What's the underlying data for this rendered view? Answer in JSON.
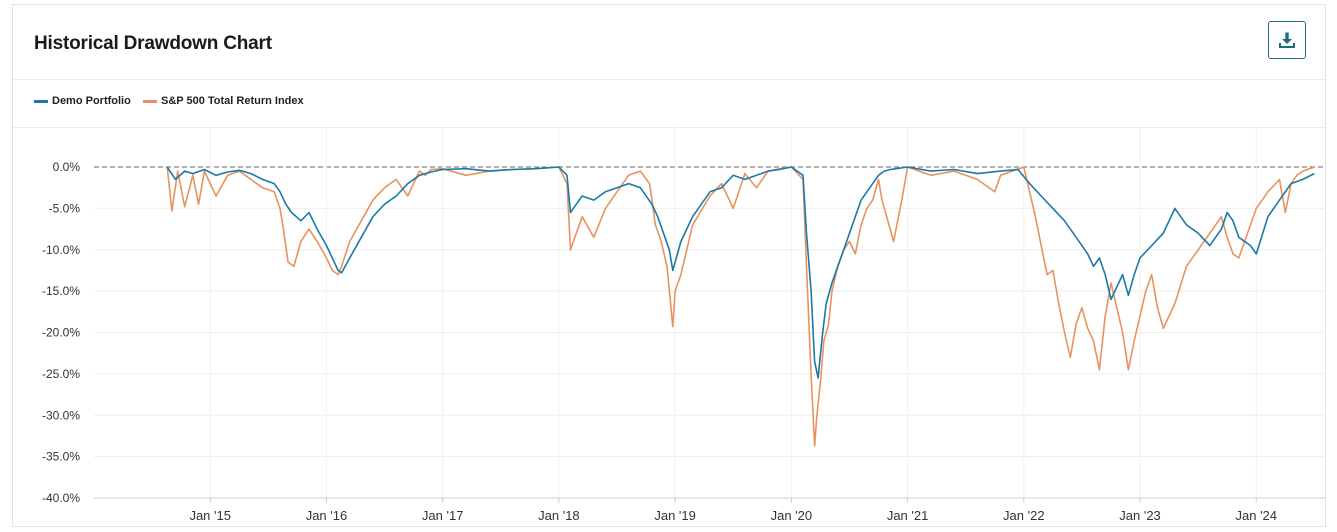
{
  "header": {
    "title": "Historical Drawdown Chart",
    "download_icon": "download-icon"
  },
  "colors": {
    "portfolio": "#1a7aa8",
    "benchmark": "#e8935f",
    "button_border": "#1c6f7a"
  },
  "chart_data": {
    "type": "line",
    "title": "Historical Drawdown Chart",
    "xlabel": "",
    "ylabel": "",
    "ylim": [
      -40,
      0
    ],
    "yticks": [
      "0.0%",
      "-5.0%",
      "-10.0%",
      "-15.0%",
      "-20.0%",
      "-25.0%",
      "-30.0%",
      "-35.0%",
      "-40.0%"
    ],
    "ytick_values": [
      0,
      -5,
      -10,
      -15,
      -20,
      -25,
      -30,
      -35,
      -40
    ],
    "xlim": [
      2014.0,
      2024.6
    ],
    "xticks": [
      "Jan '15",
      "Jan '16",
      "Jan '17",
      "Jan '18",
      "Jan '19",
      "Jan '20",
      "Jan '21",
      "Jan '22",
      "Jan '23",
      "Jan '24"
    ],
    "xtick_values": [
      2015,
      2016,
      2017,
      2018,
      2019,
      2020,
      2021,
      2022,
      2023,
      2024
    ],
    "legend_position": "top-left",
    "grid": true,
    "reference_line": 0,
    "series": [
      {
        "name": "Demo Portfolio",
        "color": "#1a7aa8",
        "x": [
          2014.63,
          2014.7,
          2014.78,
          2014.85,
          2014.95,
          2015.05,
          2015.15,
          2015.25,
          2015.35,
          2015.45,
          2015.55,
          2015.6,
          2015.65,
          2015.7,
          2015.78,
          2015.85,
          2015.92,
          2016.0,
          2016.05,
          2016.1,
          2016.13,
          2016.2,
          2016.3,
          2016.4,
          2016.5,
          2016.6,
          2016.7,
          2016.8,
          2016.9,
          2017.0,
          2017.2,
          2017.4,
          2017.6,
          2017.8,
          2018.0,
          2018.07,
          2018.1,
          2018.15,
          2018.2,
          2018.3,
          2018.4,
          2018.5,
          2018.6,
          2018.7,
          2018.8,
          2018.85,
          2018.9,
          2018.95,
          2018.98,
          2019.05,
          2019.15,
          2019.3,
          2019.4,
          2019.5,
          2019.6,
          2019.7,
          2019.8,
          2019.9,
          2020.0,
          2020.1,
          2020.13,
          2020.17,
          2020.2,
          2020.23,
          2020.27,
          2020.3,
          2020.35,
          2020.4,
          2020.45,
          2020.5,
          2020.55,
          2020.6,
          2020.65,
          2020.7,
          2020.75,
          2020.8,
          2020.85,
          2020.9,
          2021.0,
          2021.2,
          2021.4,
          2021.6,
          2021.8,
          2021.95,
          2022.05,
          2022.15,
          2022.25,
          2022.35,
          2022.45,
          2022.5,
          2022.55,
          2022.6,
          2022.65,
          2022.7,
          2022.75,
          2022.8,
          2022.85,
          2022.9,
          2022.95,
          2023.0,
          2023.1,
          2023.2,
          2023.3,
          2023.4,
          2023.5,
          2023.6,
          2023.7,
          2023.75,
          2023.8,
          2023.85,
          2023.95,
          2024.0,
          2024.1,
          2024.2,
          2024.3,
          2024.4,
          2024.5
        ],
        "values": [
          0,
          -1.5,
          -0.5,
          -0.8,
          -0.3,
          -1.0,
          -0.6,
          -0.4,
          -0.8,
          -1.5,
          -2.0,
          -3.0,
          -4.5,
          -5.5,
          -6.5,
          -5.5,
          -7.5,
          -9.5,
          -11.0,
          -12.5,
          -12.8,
          -11.0,
          -8.5,
          -6.0,
          -4.5,
          -3.5,
          -2.0,
          -1.0,
          -0.6,
          -0.3,
          -0.2,
          -0.5,
          -0.3,
          -0.2,
          0,
          -1.0,
          -5.5,
          -4.5,
          -3.5,
          -4.0,
          -3.0,
          -2.5,
          -2.0,
          -2.5,
          -4.5,
          -6.0,
          -8.0,
          -10.0,
          -12.5,
          -9.0,
          -6.0,
          -3.0,
          -2.5,
          -1.0,
          -1.5,
          -1.0,
          -0.5,
          -0.3,
          0,
          -1.0,
          -8.0,
          -15.0,
          -23.5,
          -25.5,
          -20.0,
          -16.5,
          -14.0,
          -12.0,
          -10.0,
          -8.0,
          -6.0,
          -4.0,
          -3.0,
          -2.0,
          -1.0,
          -0.5,
          -0.3,
          -0.2,
          0,
          -0.5,
          -0.3,
          -0.8,
          -0.5,
          -0.3,
          -2.0,
          -3.5,
          -5.0,
          -6.5,
          -8.5,
          -9.5,
          -10.5,
          -12.0,
          -11.0,
          -13.0,
          -16.0,
          -14.5,
          -13.0,
          -15.5,
          -13.0,
          -11.0,
          -9.5,
          -8.0,
          -5.0,
          -7.0,
          -8.0,
          -9.5,
          -7.5,
          -5.5,
          -6.5,
          -8.5,
          -9.5,
          -10.5,
          -6.0,
          -4.0,
          -2.0,
          -1.5,
          -0.8
        ]
      },
      {
        "name": "S&P 500 Total Return Index",
        "color": "#e8935f",
        "x": [
          2014.63,
          2014.67,
          2014.72,
          2014.78,
          2014.85,
          2014.9,
          2014.95,
          2015.05,
          2015.15,
          2015.25,
          2015.35,
          2015.45,
          2015.55,
          2015.6,
          2015.63,
          2015.67,
          2015.72,
          2015.78,
          2015.85,
          2015.92,
          2016.0,
          2016.05,
          2016.1,
          2016.13,
          2016.2,
          2016.3,
          2016.4,
          2016.5,
          2016.6,
          2016.7,
          2016.8,
          2016.85,
          2016.9,
          2017.0,
          2017.2,
          2017.4,
          2017.6,
          2017.8,
          2018.0,
          2018.07,
          2018.1,
          2018.15,
          2018.2,
          2018.3,
          2018.4,
          2018.5,
          2018.6,
          2018.7,
          2018.78,
          2018.83,
          2018.88,
          2018.93,
          2018.98,
          2019.0,
          2019.05,
          2019.15,
          2019.3,
          2019.4,
          2019.5,
          2019.6,
          2019.7,
          2019.8,
          2019.9,
          2020.0,
          2020.1,
          2020.13,
          2020.17,
          2020.2,
          2020.22,
          2020.25,
          2020.28,
          2020.32,
          2020.35,
          2020.4,
          2020.45,
          2020.5,
          2020.55,
          2020.6,
          2020.65,
          2020.7,
          2020.75,
          2020.78,
          2020.82,
          2020.88,
          2020.95,
          2021.0,
          2021.2,
          2021.4,
          2021.6,
          2021.75,
          2021.8,
          2021.9,
          2022.0,
          2022.05,
          2022.1,
          2022.15,
          2022.2,
          2022.25,
          2022.3,
          2022.35,
          2022.4,
          2022.45,
          2022.5,
          2022.55,
          2022.6,
          2022.65,
          2022.7,
          2022.75,
          2022.8,
          2022.85,
          2022.9,
          2022.95,
          2023.0,
          2023.05,
          2023.1,
          2023.15,
          2023.2,
          2023.3,
          2023.4,
          2023.5,
          2023.6,
          2023.7,
          2023.75,
          2023.8,
          2023.85,
          2023.9,
          2023.95,
          2024.0,
          2024.1,
          2024.2,
          2024.25,
          2024.3,
          2024.35,
          2024.4,
          2024.5
        ],
        "values": [
          0,
          -5.3,
          -0.5,
          -4.8,
          -1.0,
          -4.5,
          -0.5,
          -3.5,
          -1.0,
          -0.5,
          -1.5,
          -2.5,
          -3.0,
          -5.0,
          -7.5,
          -11.5,
          -12.0,
          -9.0,
          -7.5,
          -9.0,
          -11.0,
          -12.5,
          -13.0,
          -12.0,
          -9.0,
          -6.5,
          -4.0,
          -2.5,
          -1.5,
          -3.5,
          -0.5,
          -1.0,
          -0.3,
          -0.2,
          -1.0,
          -0.5,
          -0.3,
          -0.2,
          0,
          -2.0,
          -10.0,
          -8.0,
          -6.0,
          -8.5,
          -5.0,
          -3.0,
          -1.0,
          -0.5,
          -2.0,
          -7.0,
          -9.0,
          -12.0,
          -19.3,
          -15.0,
          -13.0,
          -7.0,
          -3.5,
          -2.0,
          -5.0,
          -0.8,
          -2.5,
          -0.5,
          -0.2,
          0,
          -1.5,
          -12.0,
          -25.0,
          -33.7,
          -30.0,
          -26.0,
          -21.0,
          -19.0,
          -15.0,
          -12.0,
          -10.0,
          -9.0,
          -10.5,
          -7.0,
          -5.0,
          -4.0,
          -1.5,
          -4.0,
          -6.0,
          -9.0,
          -4.0,
          0,
          -1.0,
          -0.5,
          -1.5,
          -3.0,
          -1.0,
          -0.5,
          0,
          -3.0,
          -6.0,
          -9.5,
          -13.0,
          -12.5,
          -16.5,
          -20.0,
          -23.0,
          -19.0,
          -17.0,
          -19.5,
          -21.0,
          -24.5,
          -18.0,
          -14.0,
          -17.0,
          -20.0,
          -24.5,
          -21.0,
          -18.0,
          -15.0,
          -13.0,
          -17.0,
          -19.5,
          -16.5,
          -12.0,
          -10.0,
          -8.0,
          -6.0,
          -8.5,
          -10.5,
          -11.0,
          -9.0,
          -7.0,
          -5.0,
          -3.0,
          -1.5,
          -5.5,
          -2.0,
          -1.0,
          -0.5,
          0
        ]
      }
    ]
  }
}
